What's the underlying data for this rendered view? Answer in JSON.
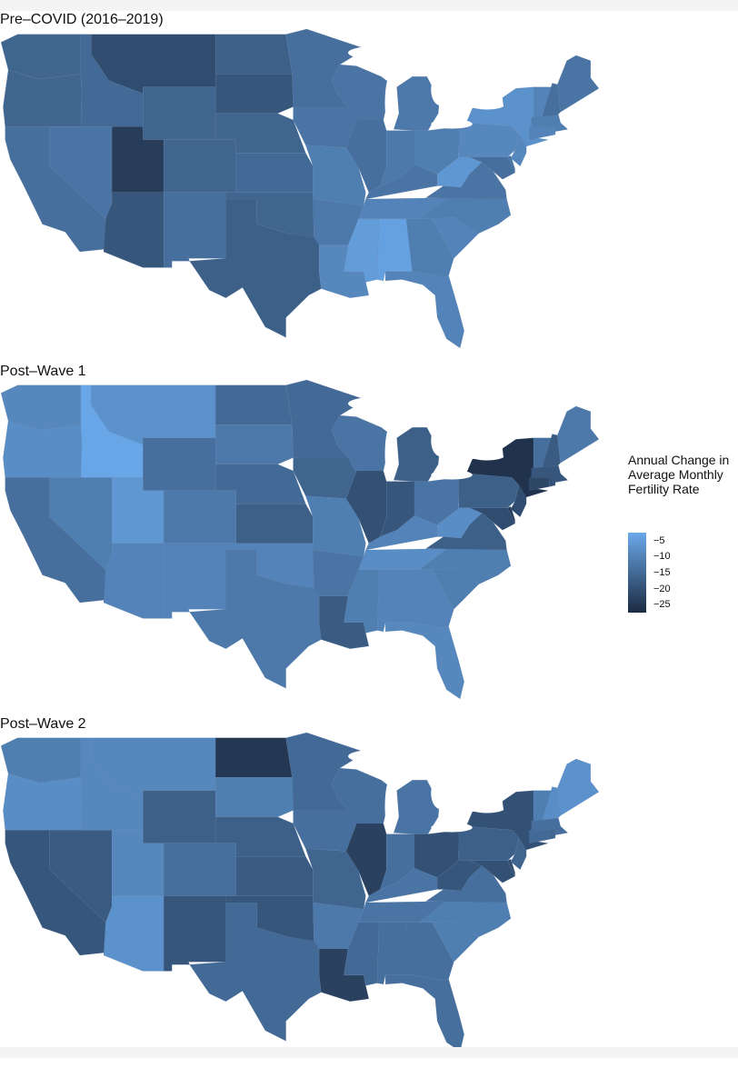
{
  "panels": [
    {
      "title": "Pre–COVID (2016–2019)",
      "values": {
        "WA": -16,
        "OR": -16,
        "CA": -14,
        "NV": -13,
        "ID": -15,
        "MT": -21,
        "WY": -16,
        "UT": -24,
        "AZ": -19,
        "CO": -16,
        "NM": -14,
        "TX": -17,
        "ND": -17,
        "SD": -19,
        "NE": -16,
        "KS": -15,
        "OK": -16,
        "MN": -14,
        "IA": -13,
        "MO": -11,
        "AR": -12,
        "LA": -9,
        "WI": -13,
        "IL": -14,
        "MI": -12,
        "IN": -12,
        "OH": -11,
        "KY": -13,
        "TN": -10,
        "MS": -5,
        "AL": -4,
        "GA": -11,
        "FL": -10,
        "SC": -10,
        "NC": -11,
        "VA": -13,
        "WV": -6,
        "PA": -9,
        "NY": -7,
        "ME": -13,
        "NH": -14,
        "VT": -10,
        "NJ": -9,
        "DE": -13,
        "MD": -14,
        "CT": -10,
        "MA": -11,
        "RI": -10
      }
    },
    {
      "title": "Post–Wave 1",
      "values": {
        "WA": -9,
        "OR": -8,
        "CA": -14,
        "NV": -11,
        "ID": -3,
        "MT": -7,
        "WY": -14,
        "UT": -6,
        "AZ": -10,
        "CO": -12,
        "NM": -10,
        "TX": -12,
        "ND": -15,
        "SD": -12,
        "NE": -15,
        "KS": -17,
        "OK": -10,
        "MN": -15,
        "IA": -16,
        "MO": -11,
        "AR": -13,
        "LA": -18,
        "WI": -13,
        "IL": -20,
        "MI": -17,
        "IN": -19,
        "OH": -13,
        "KY": -10,
        "TN": -8,
        "MS": -11,
        "AL": -10,
        "GA": -10,
        "FL": -9,
        "SC": -11,
        "NC": -11,
        "VA": -17,
        "WV": -8,
        "PA": -17,
        "NY": -26,
        "ME": -12,
        "NH": -18,
        "VT": -14,
        "NJ": -21,
        "DE": -24,
        "MD": -21,
        "CT": -22,
        "MA": -19,
        "RI": -20
      }
    },
    {
      "title": "Post–Wave 2",
      "values": {
        "WA": -11,
        "OR": -8,
        "CA": -19,
        "NV": -18,
        "ID": -9,
        "MT": -9,
        "WY": -17,
        "UT": -9,
        "AZ": -7,
        "CO": -14,
        "NM": -19,
        "TX": -15,
        "ND": -25,
        "SD": -11,
        "NE": -17,
        "KS": -18,
        "OK": -19,
        "MN": -15,
        "IA": -14,
        "MO": -16,
        "AR": -12,
        "LA": -23,
        "WI": -14,
        "IL": -23,
        "MI": -13,
        "IN": -14,
        "OH": -20,
        "KY": -13,
        "TN": -13,
        "MS": -15,
        "AL": -14,
        "GA": -14,
        "FL": -14,
        "SC": -11,
        "NC": -11,
        "VA": -14,
        "WV": -19,
        "PA": -17,
        "NY": -20,
        "ME": -7,
        "NH": -8,
        "VT": -11,
        "NJ": -16,
        "DE": -21,
        "MD": -20,
        "CT": -15,
        "MA": -14,
        "RI": -16
      }
    }
  ],
  "legend": {
    "title_lines": [
      "Annual Change in",
      "Average Monthly",
      "Fertility Rate"
    ],
    "ticks": [
      "−5",
      "−10",
      "−15",
      "−20",
      "−25"
    ],
    "tick_values": [
      -5,
      -10,
      -15,
      -20,
      -25
    ],
    "range": [
      -2.5,
      -27.5
    ],
    "color_high": "#6aa9ea",
    "color_low": "#1c2b42"
  }
}
